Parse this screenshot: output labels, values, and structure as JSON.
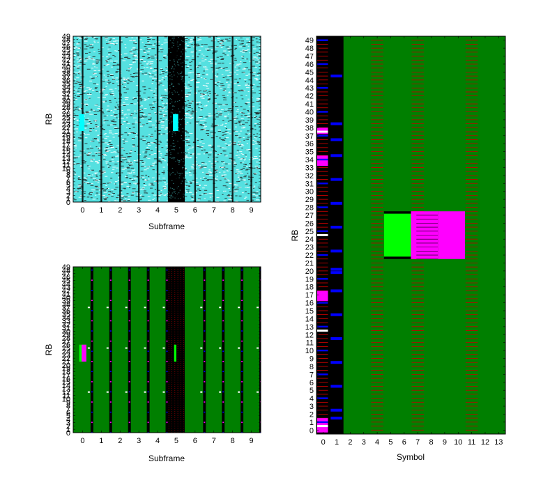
{
  "figure": {
    "background": "#ffffff"
  },
  "chart_data": [
    {
      "type": "heatmap",
      "id": "top-left",
      "xlabel": "Subframe",
      "ylabel": "RB",
      "x_ticks": [
        "0",
        "1",
        "2",
        "3",
        "4",
        "5",
        "6",
        "7",
        "8",
        "9"
      ],
      "y_ticks": [
        "0",
        "1",
        "2",
        "3",
        "4",
        "5",
        "6",
        "7",
        "8",
        "9",
        "10",
        "11",
        "12",
        "13",
        "14",
        "15",
        "16",
        "17",
        "18",
        "19",
        "20",
        "21",
        "22",
        "23",
        "24",
        "25",
        "26",
        "27",
        "28",
        "29",
        "30",
        "31",
        "32",
        "33",
        "34",
        "35",
        "36",
        "37",
        "38",
        "39",
        "40",
        "41",
        "42",
        "43",
        "44",
        "45",
        "46",
        "47",
        "48",
        "49"
      ],
      "xlim": [
        -0.5,
        9.5
      ],
      "ylim": [
        0,
        49
      ],
      "colors": {
        "base": "#55e0e0",
        "noise": "#222222",
        "column": "#000000",
        "block": "#00ffff",
        "frame": "#000000"
      },
      "dark_band_subframe": 5,
      "highlights": [
        {
          "subframe": 0,
          "rb_range": [
            21,
            26
          ],
          "color": "#00ffff"
        },
        {
          "subframe": 5,
          "rb_range": [
            21,
            26
          ],
          "color": "#00ffff"
        }
      ]
    },
    {
      "type": "heatmap",
      "id": "bottom-left",
      "xlabel": "Subframe",
      "ylabel": "RB",
      "x_ticks": [
        "0",
        "1",
        "2",
        "3",
        "4",
        "5",
        "6",
        "7",
        "8",
        "9"
      ],
      "y_ticks": [
        "0",
        "1",
        "2",
        "3",
        "4",
        "5",
        "6",
        "7",
        "8",
        "9",
        "10",
        "11",
        "12",
        "13",
        "14",
        "15",
        "16",
        "17",
        "18",
        "19",
        "20",
        "21",
        "22",
        "23",
        "24",
        "25",
        "26",
        "27",
        "28",
        "29",
        "30",
        "31",
        "32",
        "33",
        "34",
        "35",
        "36",
        "37",
        "38",
        "39",
        "40",
        "41",
        "42",
        "43",
        "44",
        "45",
        "46",
        "47",
        "48",
        "49"
      ],
      "xlim": [
        -0.5,
        9.5
      ],
      "ylim": [
        0,
        49
      ],
      "colors": {
        "base": "#007f00",
        "column": "#000000",
        "marker": "#ff00ff",
        "green_block": "#00ff00",
        "magenta_block": "#ff00ff"
      },
      "dark_band_subframe": 5,
      "highlights": [
        {
          "subframe": 0,
          "rb_range": [
            21,
            26
          ],
          "color": "#00ff00"
        },
        {
          "subframe": 0,
          "rb_range": [
            21,
            26
          ],
          "color": "#ff00ff"
        },
        {
          "subframe": 5,
          "rb_range": [
            21,
            26
          ],
          "color": "#00ff00"
        }
      ]
    },
    {
      "type": "heatmap",
      "id": "right",
      "xlabel": "Symbol",
      "ylabel": "RB",
      "x_ticks": [
        "0",
        "1",
        "2",
        "3",
        "4",
        "5",
        "6",
        "7",
        "8",
        "9",
        "10",
        "11",
        "12",
        "13"
      ],
      "y_ticks": [
        "0",
        "1",
        "2",
        "3",
        "4",
        "5",
        "6",
        "7",
        "8",
        "9",
        "10",
        "11",
        "12",
        "13",
        "14",
        "15",
        "16",
        "17",
        "18",
        "19",
        "20",
        "21",
        "22",
        "23",
        "24",
        "25",
        "26",
        "27",
        "28",
        "29",
        "30",
        "31",
        "32",
        "33",
        "34",
        "35",
        "36",
        "37",
        "38",
        "39",
        "40",
        "41",
        "42",
        "43",
        "44",
        "45",
        "46",
        "47",
        "48",
        "49"
      ],
      "xlim": [
        -0.5,
        13.5
      ],
      "ylim": [
        -0.5,
        49.5
      ],
      "colors": {
        "base": "#007f00",
        "control_region": "#000000",
        "control_line": "#ff0000",
        "control_blue": "#0000ff",
        "reference_line": "#c00000",
        "green_block": "#00ff00",
        "magenta_block": "#ff00ff",
        "white": "#ffffff"
      },
      "control_symbols": [
        0,
        1
      ],
      "reference_symbols": [
        4,
        7,
        11
      ],
      "blue_marks_symbol1": [
        1.5,
        2.5,
        5.5,
        8.5,
        11.5,
        14.5,
        17.5,
        19.8,
        20.2,
        22.5,
        25.5,
        28.5,
        31.5,
        34.5,
        36.5,
        38.5,
        44.5
      ],
      "magenta_symbol0": [
        [
          0,
          1.5
        ],
        [
          16.5,
          17.5
        ],
        [
          33.5,
          34.5
        ],
        [
          37.5,
          38.0
        ]
      ],
      "white_symbol0": [
        0.5,
        12.5,
        24.5,
        37.5
      ],
      "green_block": {
        "symbols": [
          5,
          6
        ],
        "rb_range": [
          22,
          27
        ]
      },
      "striped_block": {
        "symbols": [
          7,
          8
        ],
        "rb_range": [
          22,
          27
        ]
      },
      "magenta_block": {
        "symbols": [
          9,
          10
        ],
        "rb_range": [
          22,
          27
        ]
      }
    }
  ]
}
